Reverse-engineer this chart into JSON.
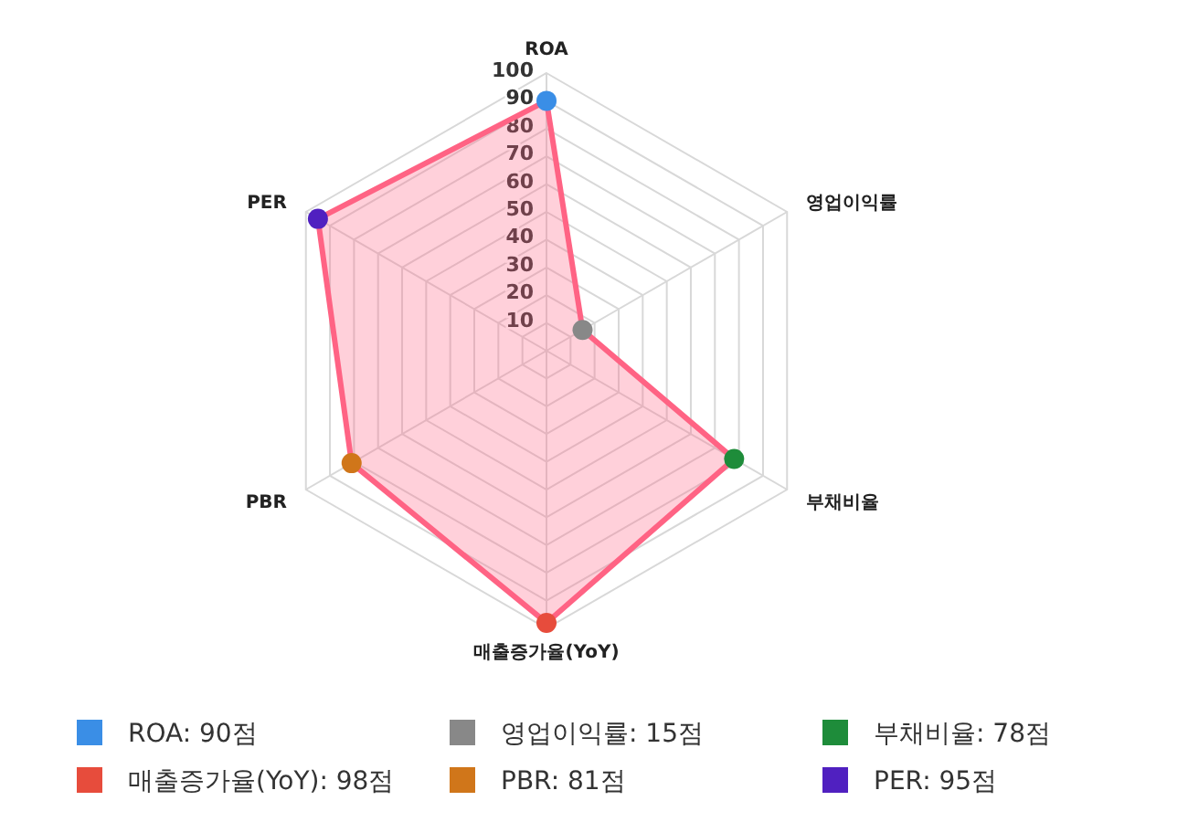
{
  "chart_data": {
    "type": "radar",
    "categories": [
      "ROA",
      "영업이익률",
      "부채비율",
      "매출증가율(YoY)",
      "PBR",
      "PER"
    ],
    "series": [
      {
        "color": "#ff6384",
        "values": [
          90,
          15,
          78,
          98,
          81,
          95
        ],
        "colors": [
          "#3a8ee6",
          "#888888",
          "#1e8c3a",
          "#e74c3c",
          "#d0761a",
          "#5020c0"
        ]
      }
    ],
    "annotations": [
      "ROA: 90점",
      "영업이익률: 15점",
      "부채비율: 78점",
      "매출증가율(YoY): 98점",
      "PBR: 81점",
      "PER: 95점"
    ],
    "ylim": [
      0,
      100
    ],
    "yticks": [
      10,
      20,
      30,
      40,
      50,
      60,
      70,
      80,
      90,
      100
    ],
    "grid": true,
    "marker": "circle",
    "line_style": "solid"
  }
}
